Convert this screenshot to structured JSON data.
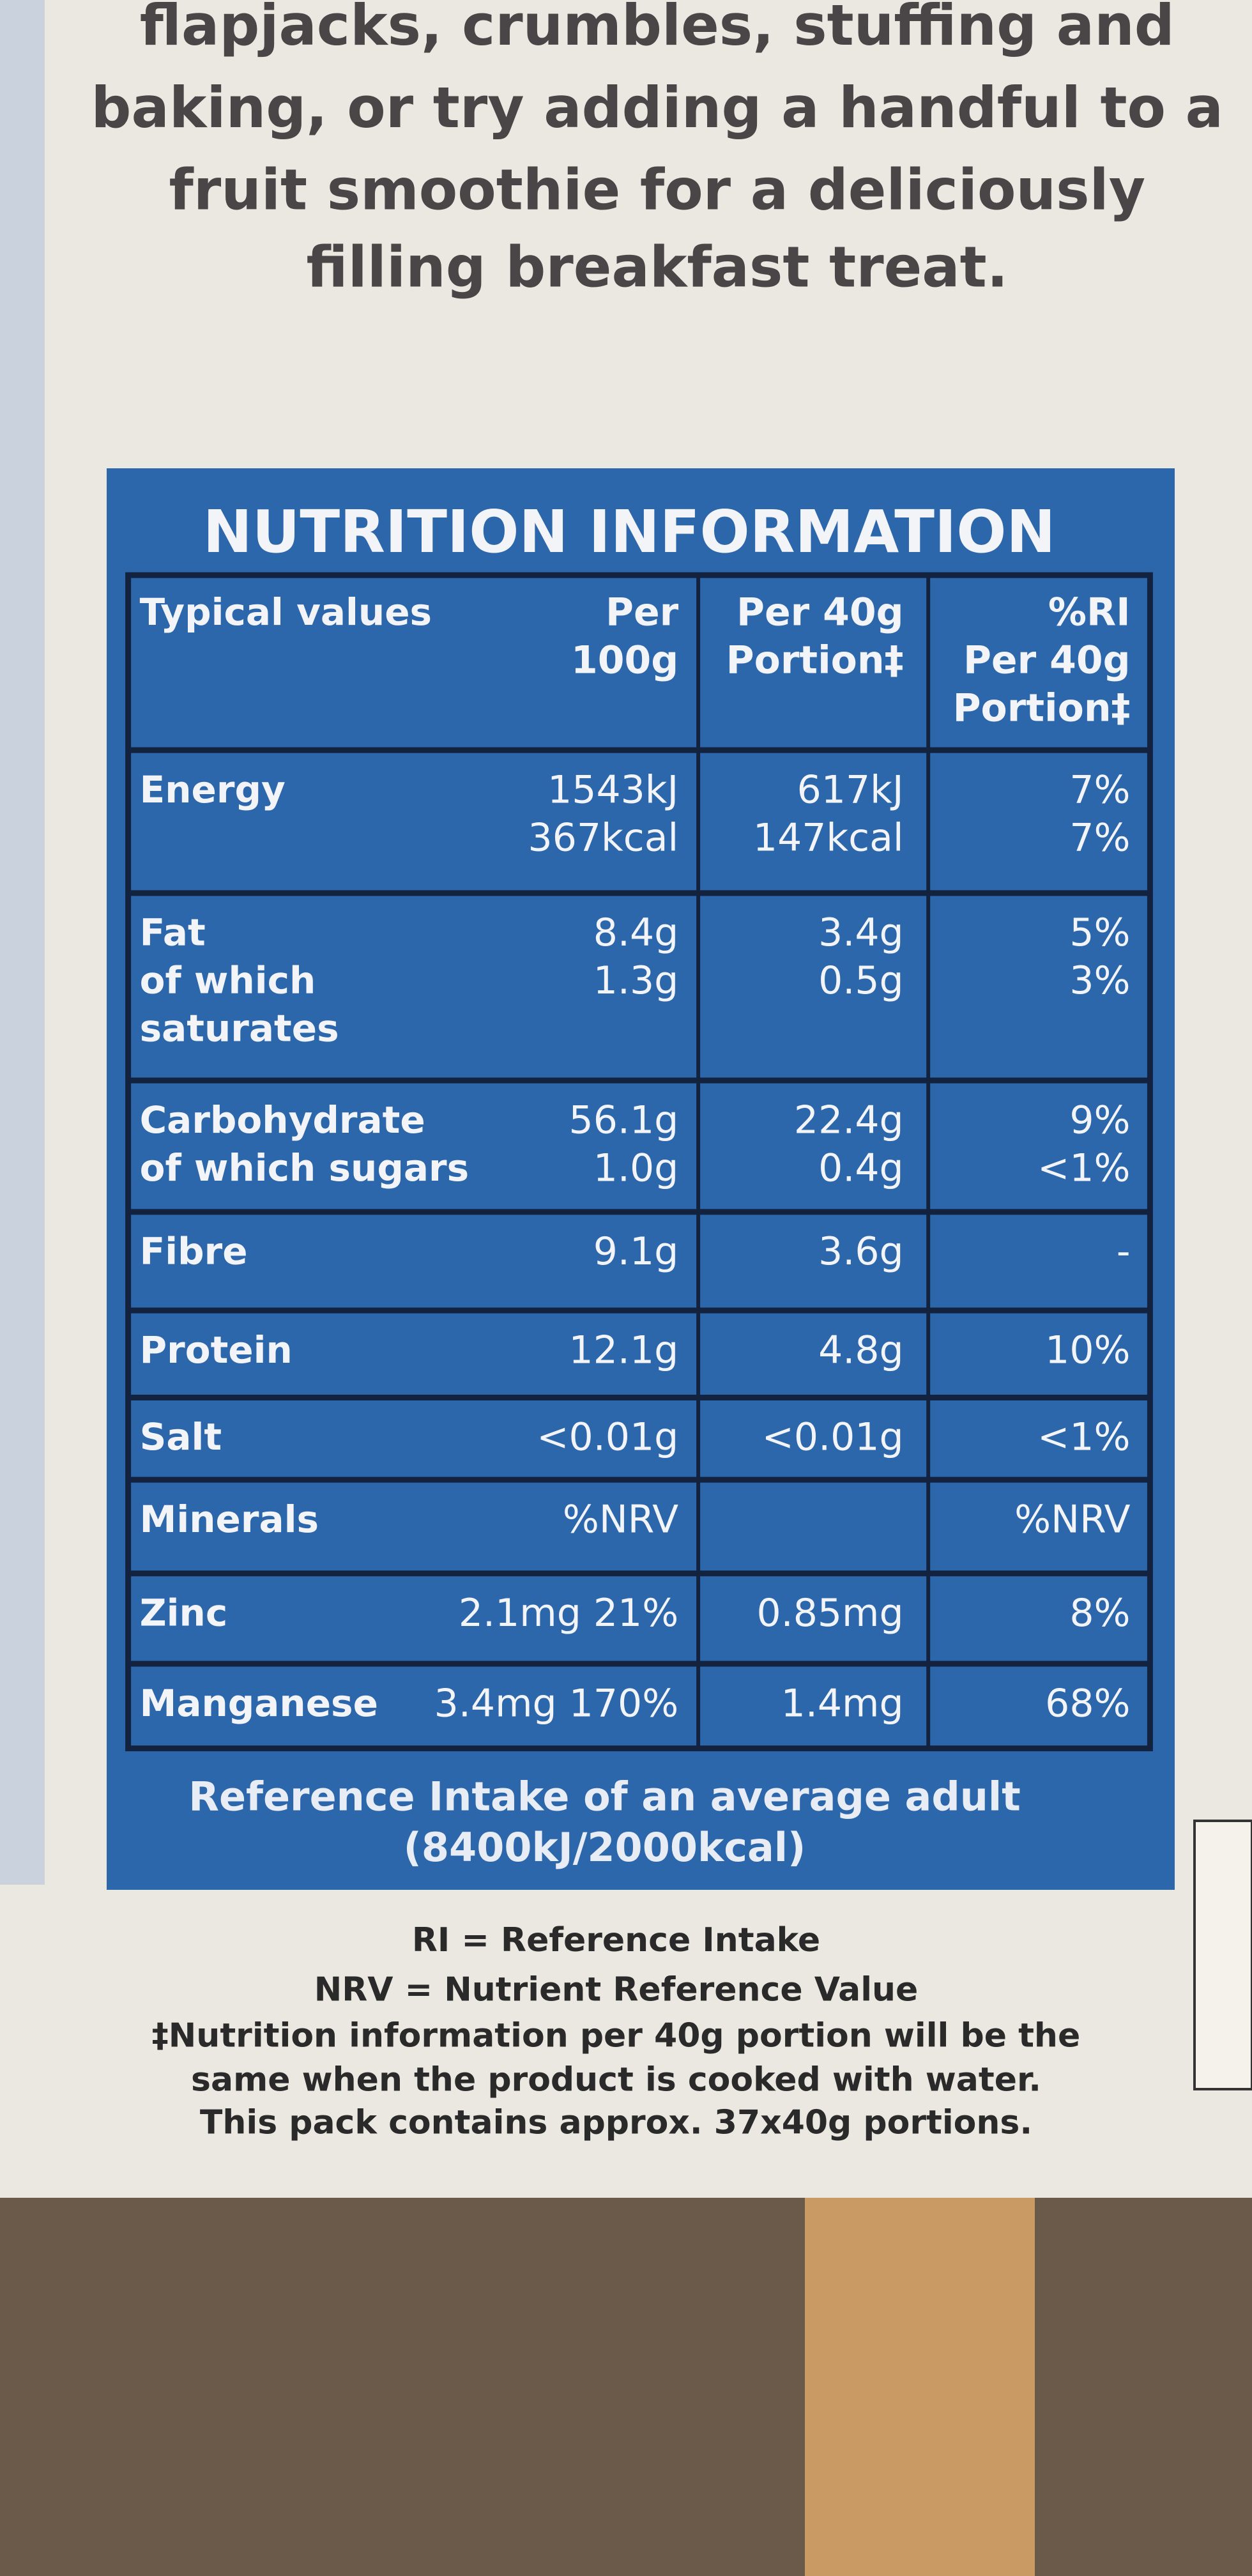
{
  "intro": [
    "flapjacks, crumbles, stuffing and",
    "baking, or try adding a handful to a",
    "fruit smoothie for a deliciously",
    "filling breakfast treat."
  ],
  "nutrition": {
    "title": "NUTRITION INFORMATION",
    "header": {
      "label": [
        "Typical values"
      ],
      "per100g": [
        "Per",
        "100g"
      ],
      "per40g": [
        "Per 40g",
        "Portion‡"
      ],
      "ri": [
        "%RI",
        "Per 40g",
        "Portion‡"
      ]
    },
    "rows": [
      {
        "label": [
          "Energy"
        ],
        "per100g": [
          "1543kJ",
          "367kcal"
        ],
        "per40g": [
          "617kJ",
          "147kcal"
        ],
        "ri": [
          "7%",
          "7%"
        ]
      },
      {
        "label": [
          "Fat",
          "of which",
          "saturates"
        ],
        "per100g": [
          "8.4g",
          "1.3g"
        ],
        "per40g": [
          "3.4g",
          "0.5g"
        ],
        "ri": [
          "5%",
          "3%"
        ]
      },
      {
        "label": [
          "Carbohydrate",
          "of which sugars"
        ],
        "per100g": [
          "56.1g",
          "1.0g"
        ],
        "per40g": [
          "22.4g",
          "0.4g"
        ],
        "ri": [
          "9%",
          "<1%"
        ]
      },
      {
        "label": [
          "Fibre"
        ],
        "per100g": [
          "9.1g"
        ],
        "per40g": [
          "3.6g"
        ],
        "ri": [
          "-"
        ]
      },
      {
        "label": [
          "Protein"
        ],
        "per100g": [
          "12.1g"
        ],
        "per40g": [
          "4.8g"
        ],
        "ri": [
          "10%"
        ]
      },
      {
        "label": [
          "Salt"
        ],
        "per100g": [
          "<0.01g"
        ],
        "per40g": [
          "<0.01g"
        ],
        "ri": [
          "<1%"
        ]
      },
      {
        "label": [
          "Minerals"
        ],
        "per100g": [
          "%NRV"
        ],
        "ri": [
          "%NRV"
        ]
      },
      {
        "label": [
          "Zinc"
        ],
        "per100g": [
          "2.1mg 21%"
        ],
        "per40g": [
          "0.85mg"
        ],
        "ri": [
          "8%"
        ]
      },
      {
        "label": [
          "Manganese"
        ],
        "per100g": [
          "3.4mg 170%"
        ],
        "per40g": [
          "1.4mg"
        ],
        "ri": [
          "68%"
        ]
      }
    ],
    "reference": [
      "Reference Intake of an average adult",
      "(8400kJ/2000kcal)"
    ]
  },
  "notes": [
    "RI = Reference Intake",
    "NRV = Nutrient Reference Value",
    "‡Nutrition information per 40g portion will be the",
    "same when the product is cooked with water.",
    "This pack contains approx. 37x40g portions."
  ]
}
